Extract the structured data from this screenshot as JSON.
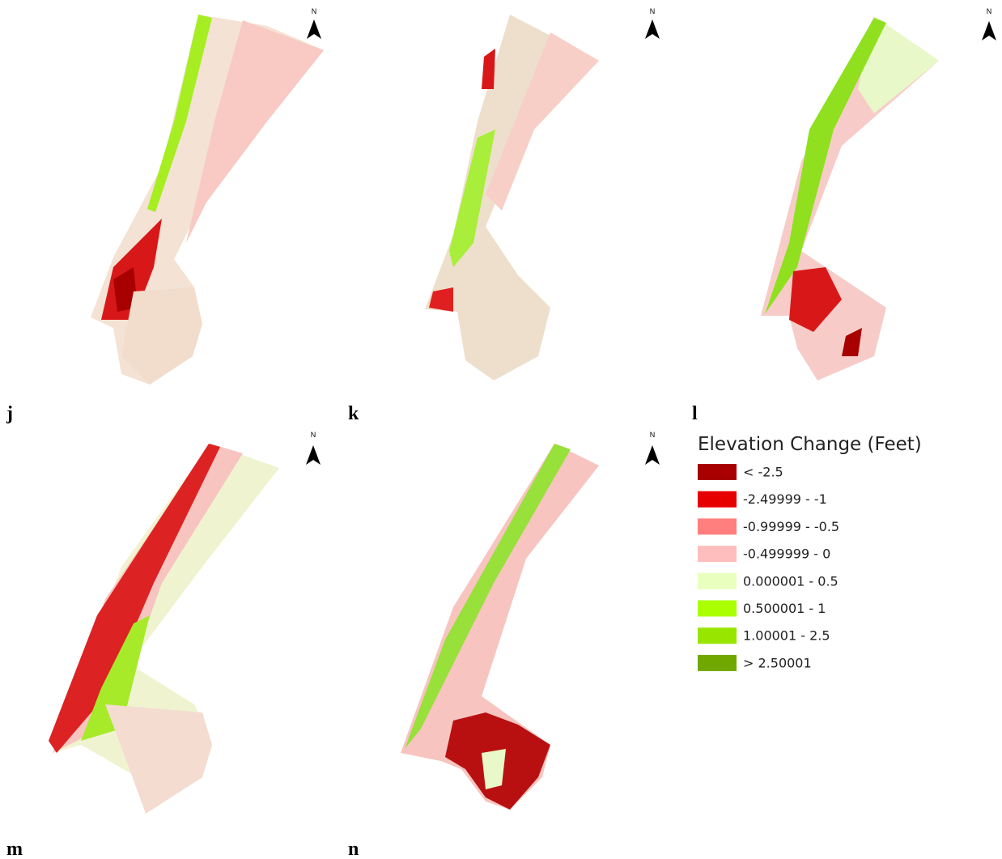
{
  "panels": [
    {
      "label": "j",
      "north": "N"
    },
    {
      "label": "k",
      "north": "N"
    },
    {
      "label": "l",
      "north": "N"
    },
    {
      "label": "m",
      "north": "N"
    },
    {
      "label": "n",
      "north": "N"
    }
  ],
  "legend": {
    "title": "Elevation Change (Feet)",
    "items": [
      {
        "label": "< -2.5",
        "color": "#a80000"
      },
      {
        "label": "-2.49999 - -1",
        "color": "#e60000"
      },
      {
        "label": "-0.99999 - -0.5",
        "color": "#ff7f7f"
      },
      {
        "label": "-0.499999 - 0",
        "color": "#ffbebe"
      },
      {
        "label": "0.000001 - 0.5",
        "color": "#e9ffbe"
      },
      {
        "label": "0.500001 - 1",
        "color": "#aaff00"
      },
      {
        "label": "1.00001 - 2.5",
        "color": "#98e600"
      },
      {
        "label": "> 2.50001",
        "color": "#70a800"
      }
    ]
  }
}
